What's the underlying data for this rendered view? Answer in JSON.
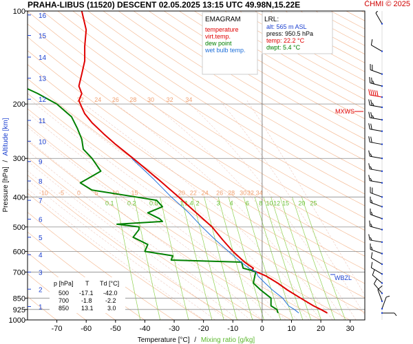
{
  "header": {
    "title": "PRAHA-LIBUS (11520)   DESCENT   02.05.2025 13:15 UTC   49.98N,15.22E",
    "copyright": "ČHMI © 2025"
  },
  "legend": {
    "heading": "EMAGRAM",
    "items": [
      {
        "label": "temperature",
        "color": "#e00000"
      },
      {
        "label": "virt.temp.",
        "color": "#e00000"
      },
      {
        "label": "dew point",
        "color": "#008000"
      },
      {
        "label": "wet bulb temp.",
        "color": "#1e6fd9"
      }
    ]
  },
  "lrl": {
    "heading": "LRL:",
    "alt": "alt: 565 m ASL",
    "press": "press: 950.5 hPa",
    "temp": "temp: 22.2 °C",
    "dwpt": "dwpt: 5.4 °C"
  },
  "table": {
    "headers": [
      "p [hPa]",
      "T",
      "Td [°C]"
    ],
    "rows": [
      [
        "500",
        "-17.1",
        "-42.0"
      ],
      [
        "700",
        "-1.8",
        "-2.2"
      ],
      [
        "850",
        "13.1",
        "3.0"
      ]
    ]
  },
  "markers": {
    "mxws": "MXWS",
    "wbzl": "WBZL"
  },
  "axes": {
    "xlabel_temp": "Temperature [°C]",
    "xlabel_sep": "/",
    "xlabel_mix": "Mixing ratio [g/kg]",
    "ylabel_pressure": "Pressure [hPa]",
    "ylabel_sep": "/",
    "ylabel_altitude": "Altitude [km]"
  },
  "colors": {
    "temperature": "#e00000",
    "dewpoint": "#008000",
    "wetbulb": "#1e6fd9",
    "altitude_ticks": "#1a3fd0",
    "dry_adiabat": "#f4b48a",
    "mixing_ratio": "#8fd14f",
    "moist_adiabat": "#e8b0a0",
    "isobar": "#888888",
    "adiabat_labels": "#f0a070"
  },
  "chart_data": {
    "type": "line",
    "x_ticks": [
      -70,
      -60,
      -50,
      -40,
      -30,
      -20,
      -10,
      0,
      10,
      20,
      30
    ],
    "y_ticks": [
      100,
      200,
      300,
      400,
      500,
      600,
      700,
      850,
      925,
      1000
    ],
    "xlim": [
      -80,
      35
    ],
    "ylim_hpa": [
      1000,
      100
    ],
    "y_scale": "log",
    "skew": "emagram (unskewed)",
    "altitude_ticks_km": [
      1,
      2,
      3,
      4,
      5,
      6,
      7,
      8,
      9,
      10,
      11,
      12,
      13,
      14,
      15,
      16
    ],
    "altitude_tick_pressures": [
      905,
      795,
      700,
      615,
      540,
      472,
      410,
      355,
      307,
      264,
      226,
      193,
      165,
      141,
      120,
      103
    ],
    "mixing_ratio_labels": [
      "0.1",
      "0.2",
      "0.5",
      "1",
      "1.4",
      "2",
      "3",
      "4",
      "6",
      "8",
      "10",
      "12",
      "15",
      "20",
      "25"
    ],
    "mixing_ratio_positions": [
      {
        "label": "0.1",
        "x": -52
      },
      {
        "label": "0.2",
        "x": -44.5
      },
      {
        "label": "0.5",
        "x": -37
      },
      {
        "label": "1",
        "x": -27.5
      },
      {
        "label": "1.4",
        "x": -25
      },
      {
        "label": "2",
        "x": -22
      },
      {
        "label": "3",
        "x": -15
      },
      {
        "label": "4",
        "x": -10.5
      },
      {
        "label": "6",
        "x": -5
      },
      {
        "label": "8",
        "x": -0.5
      },
      {
        "label": "10",
        "x": 2.5
      },
      {
        "label": "12",
        "x": 5
      },
      {
        "label": "15",
        "x": 8
      },
      {
        "label": "20",
        "x": 13.5
      },
      {
        "label": "25",
        "x": 17.5
      }
    ],
    "adiabat_labels_200": [
      {
        "label": "22",
        "x": -62
      },
      {
        "label": "24",
        "x": -56
      },
      {
        "label": "26",
        "x": -50
      },
      {
        "label": "28",
        "x": -44
      },
      {
        "label": "30",
        "x": -38
      },
      {
        "label": "32",
        "x": -31.5
      },
      {
        "label": "34",
        "x": -25
      }
    ],
    "adiabat_labels_400": [
      {
        "label": "-10",
        "x": -74.5
      },
      {
        "label": "-5",
        "x": -68.5
      },
      {
        "label": "0",
        "x": -62.5
      },
      {
        "label": "5",
        "x": -56.5
      },
      {
        "label": "10",
        "x": -50
      },
      {
        "label": "15",
        "x": -43.5
      },
      {
        "label": "20",
        "x": -27.5
      },
      {
        "label": "22",
        "x": -23.5
      },
      {
        "label": "24",
        "x": -19.5
      },
      {
        "label": "26",
        "x": -14.5
      },
      {
        "label": "28",
        "x": -10.5
      },
      {
        "label": "30",
        "x": -6.5
      },
      {
        "label": "32",
        "x": -4
      },
      {
        "label": "34",
        "x": -1
      }
    ],
    "series": [
      {
        "name": "temperature",
        "points": [
          [
            950,
            22.2
          ],
          [
            925,
            20.0
          ],
          [
            900,
            17.5
          ],
          [
            850,
            13.1
          ],
          [
            800,
            8.6
          ],
          [
            760,
            5.3
          ],
          [
            720,
            1.2
          ],
          [
            700,
            -1.8
          ],
          [
            690,
            -3.5
          ],
          [
            680,
            -3.0
          ],
          [
            650,
            -6.0
          ],
          [
            600,
            -10.0
          ],
          [
            550,
            -13.5
          ],
          [
            500,
            -17.1
          ],
          [
            450,
            -22.5
          ],
          [
            400,
            -28.5
          ],
          [
            350,
            -35.5
          ],
          [
            300,
            -44.0
          ],
          [
            270,
            -50.0
          ],
          [
            250,
            -54.0
          ],
          [
            230,
            -58.0
          ],
          [
            215,
            -60.5
          ],
          [
            205,
            -61.5
          ],
          [
            195,
            -62.5
          ],
          [
            185,
            -61.5
          ],
          [
            175,
            -62.5
          ],
          [
            160,
            -61.5
          ],
          [
            145,
            -60.5
          ],
          [
            130,
            -60.5
          ],
          [
            115,
            -60.0
          ],
          [
            105,
            -61.0
          ],
          [
            100,
            -61.5
          ]
        ]
      },
      {
        "name": "dew point",
        "points": [
          [
            950,
            5.4
          ],
          [
            925,
            5.0
          ],
          [
            900,
            3.0
          ],
          [
            850,
            3.0
          ],
          [
            800,
            -0.5
          ],
          [
            760,
            -3.0
          ],
          [
            720,
            -2.5
          ],
          [
            700,
            -2.2
          ],
          [
            690,
            -4.0
          ],
          [
            680,
            -6.5
          ],
          [
            650,
            -7.0
          ],
          [
            640,
            -31.0
          ],
          [
            620,
            -30.5
          ],
          [
            600,
            -40.0
          ],
          [
            570,
            -39.0
          ],
          [
            540,
            -44.0
          ],
          [
            510,
            -42.0
          ],
          [
            500,
            -42.0
          ],
          [
            490,
            -49.5
          ],
          [
            480,
            -34.0
          ],
          [
            470,
            -35.0
          ],
          [
            450,
            -39.0
          ],
          [
            430,
            -34.0
          ],
          [
            410,
            -36.0
          ],
          [
            400,
            -43.0
          ],
          [
            380,
            -58.0
          ],
          [
            360,
            -62.0
          ],
          [
            330,
            -55.0
          ],
          [
            300,
            -58.0
          ],
          [
            280,
            -61.0
          ],
          [
            260,
            -61.5
          ],
          [
            240,
            -63.0
          ],
          [
            220,
            -65.0
          ],
          [
            200,
            -70.0
          ],
          [
            185,
            -76.5
          ],
          [
            175,
            -82.0
          ]
        ]
      },
      {
        "name": "wet bulb temp.",
        "points": [
          [
            950,
            12.5
          ],
          [
            925,
            11.0
          ],
          [
            900,
            9.0
          ],
          [
            850,
            7.0
          ],
          [
            800,
            3.5
          ],
          [
            760,
            1.0
          ],
          [
            720,
            -1.5
          ],
          [
            700,
            -2.0
          ],
          [
            680,
            -4.5
          ],
          [
            650,
            -7.2
          ],
          [
            600,
            -11.5
          ],
          [
            550,
            -16.0
          ],
          [
            500,
            -20.5
          ],
          [
            450,
            -25.0
          ],
          [
            400,
            -31.0
          ],
          [
            350,
            -37.0
          ],
          [
            300,
            -44.5
          ]
        ]
      }
    ],
    "wind_barbs": [
      {
        "p": 110,
        "dir": 330,
        "kt": 10
      },
      {
        "p": 135,
        "dir": 300,
        "kt": 10
      },
      {
        "p": 160,
        "dir": 290,
        "kt": 20
      },
      {
        "p": 175,
        "dir": 285,
        "kt": 25
      },
      {
        "p": 190,
        "dir": 280,
        "kt": 50
      },
      {
        "p": 205,
        "dir": 280,
        "kt": 25
      },
      {
        "p": 225,
        "dir": 280,
        "kt": 25
      },
      {
        "p": 245,
        "dir": 280,
        "kt": 20
      },
      {
        "p": 270,
        "dir": 280,
        "kt": 20
      },
      {
        "p": 300,
        "dir": 280,
        "kt": 15
      },
      {
        "p": 330,
        "dir": 280,
        "kt": 15
      },
      {
        "p": 360,
        "dir": 280,
        "kt": 15
      },
      {
        "p": 400,
        "dir": 290,
        "kt": 20
      },
      {
        "p": 430,
        "dir": 290,
        "kt": 15
      },
      {
        "p": 470,
        "dir": 290,
        "kt": 15
      },
      {
        "p": 510,
        "dir": 285,
        "kt": 15
      },
      {
        "p": 560,
        "dir": 280,
        "kt": 15
      },
      {
        "p": 610,
        "dir": 290,
        "kt": 15
      },
      {
        "p": 660,
        "dir": 300,
        "kt": 10
      },
      {
        "p": 710,
        "dir": 300,
        "kt": 10
      },
      {
        "p": 760,
        "dir": 310,
        "kt": 10
      },
      {
        "p": 820,
        "dir": 320,
        "kt": 10
      },
      {
        "p": 870,
        "dir": 340,
        "kt": 10
      },
      {
        "p": 920,
        "dir": 20,
        "kt": 5
      },
      {
        "p": 950,
        "dir": 90,
        "kt": 5
      }
    ]
  }
}
